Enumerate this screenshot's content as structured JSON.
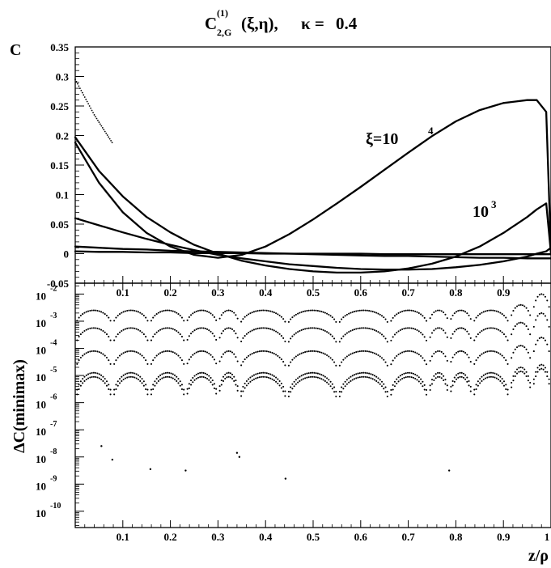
{
  "title": {
    "symbol": "C",
    "superscript": "(1)",
    "subscript": "2,G",
    "args": "(ξ,η),",
    "kappa_label": "κ =",
    "kappa_value": "0.4"
  },
  "top_panel": {
    "y_axis_label": "C",
    "annotation_main": {
      "base": "ξ=10",
      "exponent": "4"
    },
    "annotation_secondary": {
      "base": "10",
      "exponent": "3"
    }
  },
  "bottom_panel": {
    "y_axis_label": "ΔC(minimax)",
    "x_axis_label": "z/ρ"
  },
  "chart_data": [
    {
      "type": "line",
      "panel": "top",
      "title": "C(1)2,G(ξ,η), κ = 0.4",
      "xlabel": "",
      "ylabel": "C",
      "xlim": [
        0,
        1
      ],
      "ylim": [
        -0.05,
        0.35
      ],
      "x_ticks": [
        "0.1",
        "0.2",
        "0.3",
        "0.4",
        "0.5",
        "0.6",
        "0.7",
        "0.8",
        "0.9"
      ],
      "y_ticks": [
        "-0.05",
        "0",
        "0.05",
        "0.1",
        "0.15",
        "0.2",
        "0.25",
        "0.3",
        "0.35"
      ],
      "y_tick_values": [
        -0.05,
        0,
        0.05,
        0.1,
        0.15,
        0.2,
        0.25,
        0.3,
        0.35
      ],
      "x": [
        0.0,
        0.05,
        0.1,
        0.15,
        0.2,
        0.25,
        0.3,
        0.35,
        0.4,
        0.45,
        0.5,
        0.55,
        0.6,
        0.65,
        0.7,
        0.75,
        0.8,
        0.85,
        0.9,
        0.95,
        0.97,
        0.99,
        1.0
      ],
      "series": [
        {
          "name": "ξ=10^4",
          "values": [
            0.188,
            0.12,
            0.07,
            0.035,
            0.012,
            -0.002,
            -0.007,
            -0.002,
            0.012,
            0.033,
            0.058,
            0.085,
            0.113,
            0.142,
            0.171,
            0.199,
            0.224,
            0.243,
            0.255,
            0.26,
            0.26,
            0.24,
            0.0
          ]
        },
        {
          "name": "10^3",
          "values": [
            0.197,
            0.14,
            0.097,
            0.062,
            0.036,
            0.015,
            0.0,
            -0.012,
            -0.02,
            -0.026,
            -0.03,
            -0.032,
            -0.032,
            -0.03,
            -0.025,
            -0.017,
            -0.005,
            0.012,
            0.035,
            0.062,
            0.075,
            0.085,
            0.0
          ]
        },
        {
          "values": [
            0.06,
            0.048,
            0.036,
            0.025,
            0.015,
            0.006,
            -0.002,
            -0.008,
            -0.013,
            -0.018,
            -0.021,
            -0.024,
            -0.026,
            -0.027,
            -0.027,
            -0.026,
            -0.023,
            -0.019,
            -0.013,
            -0.005,
            0.0,
            0.004,
            0.01
          ]
        },
        {
          "values": [
            0.012,
            0.01,
            0.008,
            0.007,
            0.005,
            0.004,
            0.003,
            0.002,
            0.001,
            0.0,
            -0.001,
            -0.002,
            -0.003,
            -0.004,
            -0.004,
            -0.005,
            -0.006,
            -0.007,
            -0.007,
            -0.008,
            -0.008,
            -0.008,
            -0.008
          ]
        },
        {
          "values": [
            0.004,
            0.003,
            0.003,
            0.002,
            0.002,
            0.001,
            0.001,
            0.001,
            0.0,
            0.0,
            0.0,
            0.0,
            0.0,
            -0.001,
            -0.001,
            -0.001,
            -0.001,
            -0.001,
            -0.001,
            -0.001,
            -0.001,
            -0.001,
            -0.001
          ]
        }
      ],
      "dotted_series": {
        "x": [
          0.0,
          0.02,
          0.04,
          0.06,
          0.08
        ],
        "values": [
          0.295,
          0.265,
          0.235,
          0.21,
          0.185
        ]
      }
    },
    {
      "type": "scatter",
      "panel": "bottom",
      "xlabel": "z/ρ",
      "ylabel": "ΔC(minimax)",
      "xlim": [
        0,
        1
      ],
      "log_scale_y": true,
      "ylim_exponent": [
        -10.6,
        -1.6
      ],
      "x_ticks": [
        "0.1",
        "0.2",
        "0.3",
        "0.4",
        "0.5",
        "0.6",
        "0.7",
        "0.8",
        "0.9",
        "1"
      ],
      "y_ticks": [
        {
          "base": "10",
          "exp": "-2"
        },
        {
          "base": "10",
          "exp": "-3"
        },
        {
          "base": "10",
          "exp": "-4"
        },
        {
          "base": "10",
          "exp": "-5"
        },
        {
          "base": "10",
          "exp": "-6"
        },
        {
          "base": "10",
          "exp": "-7"
        },
        {
          "base": "10",
          "exp": "-8"
        },
        {
          "base": "10",
          "exp": "-9"
        },
        {
          "base": "10",
          "exp": "-10"
        }
      ],
      "y_tick_exponents": [
        -2,
        -3,
        -4,
        -5,
        -6,
        -7,
        -8,
        -9,
        -10
      ],
      "arch_zeros": [
        0.0,
        0.078,
        0.156,
        0.232,
        0.3,
        0.345,
        0.445,
        0.552,
        0.66,
        0.742,
        0.786,
        0.835,
        0.913,
        0.96,
        1.0
      ],
      "arch_series": [
        {
          "peak_log10": [
            -2.6,
            -2.6,
            -2.6,
            -2.6,
            -2.6,
            -2.6,
            -2.6,
            -2.6,
            -2.6,
            -2.6,
            -2.6,
            -2.6,
            -2.4,
            -2.0
          ],
          "base_log10": -3.4
        },
        {
          "peak_log10": [
            -3.25,
            -3.25,
            -3.25,
            -3.25,
            -3.25,
            -3.25,
            -3.25,
            -3.25,
            -3.25,
            -3.25,
            -3.25,
            -3.25,
            -3.05,
            -2.7
          ],
          "base_log10": -4.2
        },
        {
          "peak_log10": [
            -4.1,
            -4.1,
            -4.1,
            -4.1,
            -4.1,
            -4.1,
            -4.1,
            -4.1,
            -4.1,
            -4.1,
            -4.1,
            -4.1,
            -3.9,
            -3.6
          ],
          "base_log10": -5.1
        },
        {
          "peak_log10": [
            -4.9,
            -4.9,
            -4.9,
            -4.9,
            -4.9,
            -4.9,
            -4.9,
            -4.9,
            -4.9,
            -4.9,
            -4.9,
            -4.9,
            -4.7,
            -4.6
          ],
          "base_log10": -6.2
        },
        {
          "peak_log10": [
            -5.05,
            -5.05,
            -5.05,
            -5.05,
            -5.05,
            -5.05,
            -5.05,
            -5.05,
            -5.05,
            -5.05,
            -5.05,
            -5.05,
            -4.85,
            -4.75
          ],
          "base_log10": -6.4
        }
      ],
      "isolated_points": [
        {
          "x": 0.055,
          "log10": -7.6
        },
        {
          "x": 0.078,
          "log10": -8.1
        },
        {
          "x": 0.158,
          "log10": -8.45
        },
        {
          "x": 0.232,
          "log10": -8.5
        },
        {
          "x": 0.34,
          "log10": -7.85
        },
        {
          "x": 0.345,
          "log10": -8.0
        },
        {
          "x": 0.442,
          "log10": -8.8
        },
        {
          "x": 0.786,
          "log10": -8.5
        }
      ]
    }
  ]
}
